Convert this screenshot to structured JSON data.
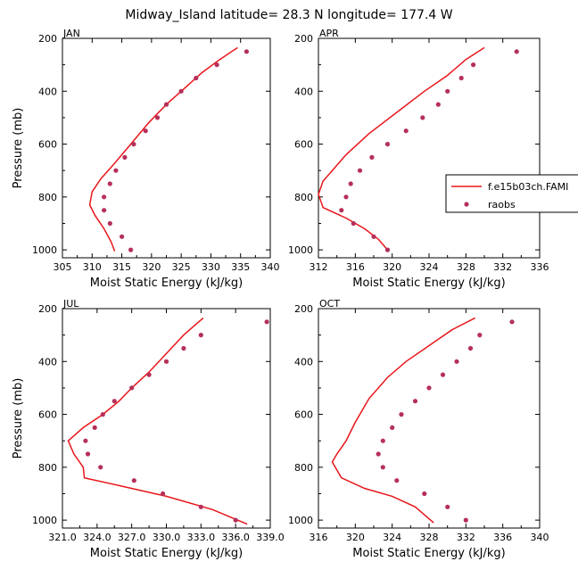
{
  "figure_title": "Midway_Island  latitude= 28.3 N longitude= 177.4 W",
  "colors": {
    "model": "#e8161b",
    "obs": "#b5305a",
    "axis": "#000000"
  },
  "legend": {
    "model_label": "f.e15b03ch.FAMI",
    "obs_label": "raobs",
    "placement": "right of APR panel"
  },
  "chart_data": [
    {
      "type": "line",
      "panel": "JAN",
      "xlabel": "Moist Static Energy (kJ/kg)",
      "ylabel": "Pressure (mb)",
      "xlim": [
        305,
        340
      ],
      "ylim": [
        1030,
        200
      ],
      "xticks": [
        305,
        310,
        315,
        320,
        325,
        330,
        335,
        340
      ],
      "xtick_labels": [
        "305",
        "310",
        "315",
        "320",
        "325",
        "330",
        "335",
        "340"
      ],
      "yticks": [
        200,
        400,
        600,
        800,
        1000
      ],
      "ytick_labels": [
        "200",
        "400",
        "600",
        "800",
        "1000"
      ],
      "series": [
        {
          "name": "f.e15b03ch.FAMI",
          "kind": "line",
          "points": [
            [
              334.5,
              235
            ],
            [
              331.5,
              280
            ],
            [
              328.5,
              330
            ],
            [
              325.5,
              390
            ],
            [
              322.5,
              450
            ],
            [
              319.5,
              520
            ],
            [
              316.5,
              600
            ],
            [
              313.5,
              680
            ],
            [
              311.5,
              730
            ],
            [
              310.0,
              780
            ],
            [
              309.6,
              830
            ],
            [
              310.5,
              870
            ],
            [
              312.0,
              920
            ],
            [
              313.2,
              970
            ],
            [
              313.8,
              1005
            ]
          ]
        },
        {
          "name": "raobs",
          "kind": "scatter",
          "points": [
            [
              336.0,
              250
            ],
            [
              331.0,
              300
            ],
            [
              327.5,
              350
            ],
            [
              325.0,
              400
            ],
            [
              322.5,
              450
            ],
            [
              321.0,
              500
            ],
            [
              319.0,
              550
            ],
            [
              317.0,
              600
            ],
            [
              315.5,
              650
            ],
            [
              314.0,
              700
            ],
            [
              313.0,
              750
            ],
            [
              312.0,
              800
            ],
            [
              312.0,
              850
            ],
            [
              313.0,
              900
            ],
            [
              315.0,
              950
            ],
            [
              316.5,
              1000
            ]
          ]
        }
      ]
    },
    {
      "type": "line",
      "panel": "APR",
      "xlabel": "Moist Static Energy (kJ/kg)",
      "ylabel": "",
      "xlim": [
        312,
        336
      ],
      "ylim": [
        1030,
        200
      ],
      "xticks": [
        312,
        316,
        320,
        324,
        328,
        332,
        336
      ],
      "xtick_labels": [
        "312",
        "316",
        "320",
        "324",
        "328",
        "332",
        "336"
      ],
      "yticks": [
        200,
        400,
        600,
        800,
        1000
      ],
      "ytick_labels": [
        "200",
        "400",
        "600",
        "800",
        "1000"
      ],
      "series": [
        {
          "name": "f.e15b03ch.FAMI",
          "kind": "line",
          "points": [
            [
              330.0,
              235
            ],
            [
              328.0,
              280
            ],
            [
              326.0,
              340
            ],
            [
              323.5,
              400
            ],
            [
              320.5,
              480
            ],
            [
              317.5,
              560
            ],
            [
              315.0,
              640
            ],
            [
              313.5,
              700
            ],
            [
              312.5,
              740
            ],
            [
              312.0,
              790
            ],
            [
              312.5,
              840
            ],
            [
              315.0,
              880
            ],
            [
              317.0,
              920
            ],
            [
              318.5,
              960
            ],
            [
              319.5,
              1000
            ]
          ]
        },
        {
          "name": "raobs",
          "kind": "scatter",
          "points": [
            [
              333.5,
              250
            ],
            [
              328.8,
              300
            ],
            [
              327.5,
              350
            ],
            [
              326.0,
              400
            ],
            [
              325.0,
              450
            ],
            [
              323.3,
              500
            ],
            [
              321.5,
              550
            ],
            [
              319.5,
              600
            ],
            [
              317.8,
              650
            ],
            [
              316.5,
              700
            ],
            [
              315.5,
              750
            ],
            [
              315.0,
              800
            ],
            [
              314.5,
              850
            ],
            [
              315.8,
              900
            ],
            [
              318.0,
              950
            ],
            [
              319.5,
              1000
            ]
          ]
        }
      ]
    },
    {
      "type": "line",
      "panel": "JUL",
      "xlabel": "Moist Static Energy (kJ/kg)",
      "ylabel": "Pressure (mb)",
      "xlim": [
        321,
        339
      ],
      "ylim": [
        1030,
        200
      ],
      "xticks": [
        321,
        324,
        327,
        330,
        333,
        336,
        339
      ],
      "xtick_labels": [
        "321.0",
        "324.0",
        "327.0",
        "330.0",
        "333.0",
        "336.0",
        "339.0"
      ],
      "yticks": [
        200,
        400,
        600,
        800,
        1000
      ],
      "ytick_labels": [
        "200",
        "400",
        "600",
        "800",
        "1000"
      ],
      "series": [
        {
          "name": "f.e15b03ch.FAMI",
          "kind": "line",
          "points": [
            [
              333.2,
              235
            ],
            [
              331.5,
              300
            ],
            [
              330.0,
              370
            ],
            [
              328.5,
              440
            ],
            [
              327.0,
              500
            ],
            [
              325.9,
              550
            ],
            [
              324.5,
              600
            ],
            [
              322.8,
              650
            ],
            [
              321.5,
              700
            ],
            [
              322.0,
              750
            ],
            [
              322.8,
              800
            ],
            [
              322.9,
              840
            ],
            [
              326.0,
              870
            ],
            [
              330.0,
              910
            ],
            [
              334.0,
              960
            ],
            [
              337.0,
              1015
            ]
          ]
        },
        {
          "name": "raobs",
          "kind": "scatter",
          "points": [
            [
              338.7,
              250
            ],
            [
              333.0,
              300
            ],
            [
              331.5,
              350
            ],
            [
              330.0,
              400
            ],
            [
              328.5,
              450
            ],
            [
              327.0,
              500
            ],
            [
              325.5,
              550
            ],
            [
              324.5,
              600
            ],
            [
              323.8,
              650
            ],
            [
              323.0,
              700
            ],
            [
              323.2,
              750
            ],
            [
              324.3,
              800
            ],
            [
              327.2,
              850
            ],
            [
              329.7,
              900
            ],
            [
              333.0,
              950
            ],
            [
              336.0,
              1000
            ]
          ]
        }
      ]
    },
    {
      "type": "line",
      "panel": "OCT",
      "xlabel": "Moist Static Energy (kJ/kg)",
      "ylabel": "",
      "xlim": [
        316,
        340
      ],
      "ylim": [
        1030,
        200
      ],
      "xticks": [
        316,
        320,
        324,
        328,
        332,
        336,
        340
      ],
      "xtick_labels": [
        "316",
        "320",
        "324",
        "328",
        "332",
        "336",
        "340"
      ],
      "yticks": [
        200,
        400,
        600,
        800,
        1000
      ],
      "ytick_labels": [
        "200",
        "400",
        "600",
        "800",
        "1000"
      ],
      "series": [
        {
          "name": "f.e15b03ch.FAMI",
          "kind": "line",
          "points": [
            [
              333.0,
              235
            ],
            [
              330.5,
              280
            ],
            [
              328.0,
              340
            ],
            [
              325.5,
              400
            ],
            [
              323.5,
              460
            ],
            [
              321.5,
              540
            ],
            [
              320.0,
              630
            ],
            [
              319.0,
              700
            ],
            [
              318.0,
              750
            ],
            [
              317.5,
              780
            ],
            [
              318.5,
              840
            ],
            [
              321.0,
              880
            ],
            [
              324.0,
              910
            ],
            [
              326.5,
              950
            ],
            [
              328.5,
              1010
            ]
          ]
        },
        {
          "name": "raobs",
          "kind": "scatter",
          "points": [
            [
              337.0,
              250
            ],
            [
              333.5,
              300
            ],
            [
              332.5,
              350
            ],
            [
              331.0,
              400
            ],
            [
              329.5,
              450
            ],
            [
              328.0,
              500
            ],
            [
              326.5,
              550
            ],
            [
              325.0,
              600
            ],
            [
              324.0,
              650
            ],
            [
              323.0,
              700
            ],
            [
              322.5,
              750
            ],
            [
              323.0,
              800
            ],
            [
              324.5,
              850
            ],
            [
              327.5,
              900
            ],
            [
              330.0,
              950
            ],
            [
              332.0,
              1000
            ]
          ]
        }
      ]
    }
  ]
}
